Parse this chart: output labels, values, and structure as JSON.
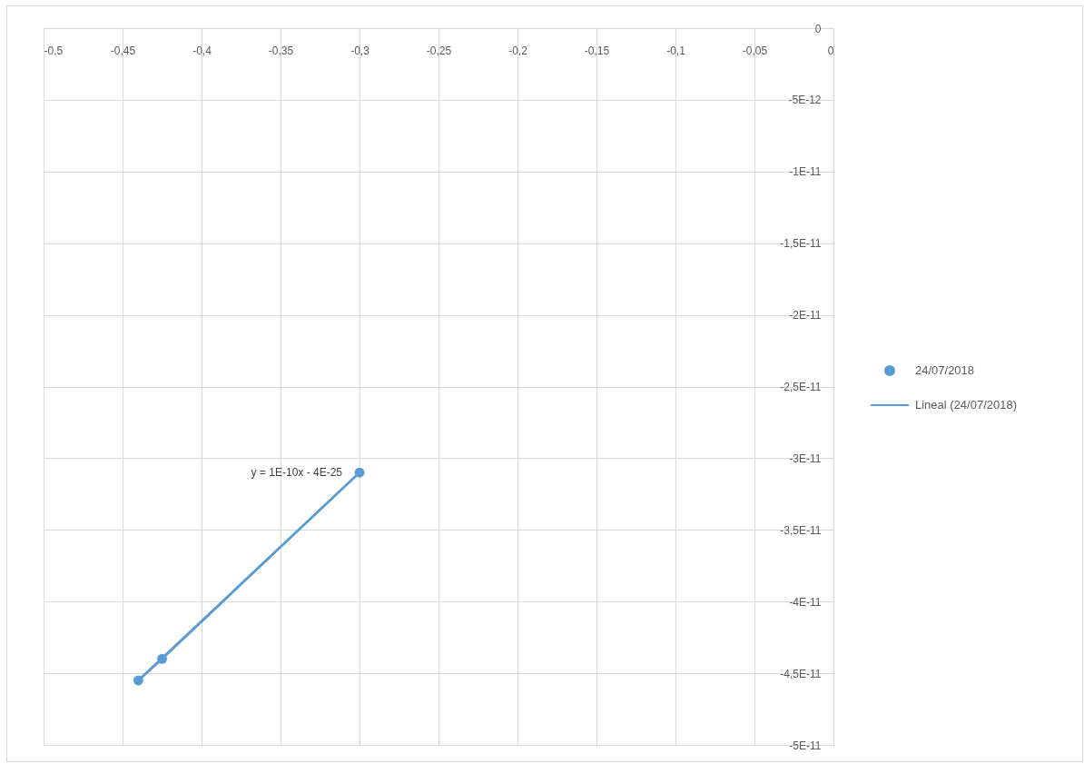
{
  "chart_data": {
    "type": "line",
    "marker": "circle",
    "grid": true,
    "legend": "right",
    "series": [
      {
        "name": "24/07/2018",
        "color": "#5b9bd5",
        "x": [
          -0.44,
          -0.425,
          -0.3
        ],
        "values": [
          -4.55e-11,
          -4.4e-11,
          -3.1e-11
        ]
      },
      {
        "name": "Lineal (24/07/2018)",
        "type": "line",
        "marker": "none",
        "color": "#5b9bd5",
        "x": [
          -0.44,
          -0.3
        ],
        "values": [
          -4.55e-11,
          -3.1e-11
        ]
      }
    ],
    "xlim": [
      -0.5,
      0
    ],
    "xticks": [
      {
        "value": -0.5,
        "label": "-0,5"
      },
      {
        "value": -0.45,
        "label": "-0,45"
      },
      {
        "value": -0.4,
        "label": "-0,4"
      },
      {
        "value": -0.35,
        "label": "-0,35"
      },
      {
        "value": -0.3,
        "label": "-0,3"
      },
      {
        "value": -0.25,
        "label": "-0,25"
      },
      {
        "value": -0.2,
        "label": "-0,2"
      },
      {
        "value": -0.15,
        "label": "-0,15"
      },
      {
        "value": -0.1,
        "label": "-0,1"
      },
      {
        "value": -0.05,
        "label": "-0,05"
      },
      0
    ],
    "ylim": [
      -5e-11,
      0
    ],
    "yticks": [
      0,
      {
        "value": -5e-12,
        "label": "-5E-12"
      },
      {
        "value": -1e-11,
        "label": "-1E-11"
      },
      {
        "value": -1.5e-11,
        "label": "-1,5E-11"
      },
      {
        "value": -2e-11,
        "label": "-2E-11"
      },
      {
        "value": -2.5e-11,
        "label": "-2,5E-11"
      },
      {
        "value": -3e-11,
        "label": "-3E-11"
      },
      {
        "value": -3.5e-11,
        "label": "-3,5E-11"
      },
      {
        "value": -4e-11,
        "label": "-4E-11"
      },
      {
        "value": -4.5e-11,
        "label": "-4,5E-11"
      },
      {
        "value": -5e-11,
        "label": "-5E-11"
      }
    ],
    "annotations": [
      "y = 1E-10x - 4E-25"
    ]
  }
}
